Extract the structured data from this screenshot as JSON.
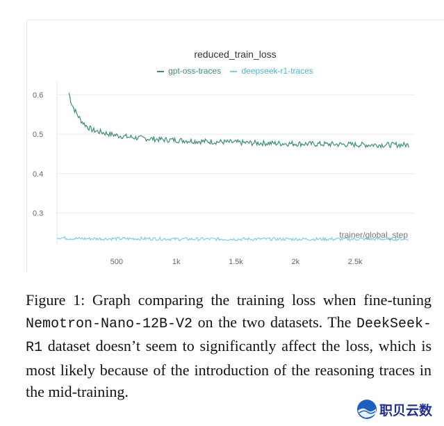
{
  "chart_data": {
    "type": "line",
    "title": "reduced_train_loss",
    "xlabel": "trainer/global_step",
    "ylabel": "",
    "x_ticks": [
      500,
      1000,
      1500,
      2000,
      2500
    ],
    "x_tick_labels": [
      "500",
      "1k",
      "1.5k",
      "2k",
      "2.5k"
    ],
    "y_ticks": [
      0.3,
      0.4,
      0.5,
      0.6
    ],
    "y_tick_labels": [
      "0.3",
      "0.4",
      "0.5",
      "0.6"
    ],
    "xlim": [
      0,
      3000
    ],
    "ylim": [
      0.22,
      0.62
    ],
    "grid": true,
    "legend_position": "top-center",
    "series": [
      {
        "name": "gpt-oss-traces",
        "color": "#3d8c7a",
        "x": [
          100,
          120,
          150,
          200,
          250,
          300,
          400,
          500,
          600,
          700,
          800,
          900,
          1000,
          1200,
          1400,
          1600,
          1800,
          2000,
          2200,
          2400,
          2600,
          2800,
          2950
        ],
        "y": [
          0.605,
          0.58,
          0.56,
          0.535,
          0.52,
          0.51,
          0.503,
          0.497,
          0.493,
          0.49,
          0.488,
          0.486,
          0.485,
          0.482,
          0.48,
          0.478,
          0.477,
          0.476,
          0.475,
          0.474,
          0.473,
          0.473,
          0.473
        ]
      },
      {
        "name": "deepseek-r1-traces",
        "color": "#7ecfe0",
        "x": [
          0,
          100,
          200,
          400,
          600,
          800,
          1000,
          1200,
          1400,
          1600,
          1800,
          2000,
          2200,
          2400,
          2600,
          2800,
          2950
        ],
        "y": [
          0.238,
          0.236,
          0.235,
          0.235,
          0.235,
          0.235,
          0.234,
          0.234,
          0.234,
          0.234,
          0.234,
          0.234,
          0.234,
          0.234,
          0.234,
          0.234,
          0.234
        ]
      }
    ]
  },
  "caption": {
    "part1": "Figure 1:  Graph comparing the training loss when fine-tuning ",
    "model": "Nemotron-Nano-12B-V2",
    "part2": " on the two datasets.  The ",
    "dataset": "DeekSeek-R1",
    "part3": " dataset doesn’t seem to significantly affect the loss, which is most likely because of the introduction of the reasoning traces in the mid-training."
  },
  "watermark": {
    "text": "职贝云数",
    "logo_icon": "globe-logo-icon"
  }
}
